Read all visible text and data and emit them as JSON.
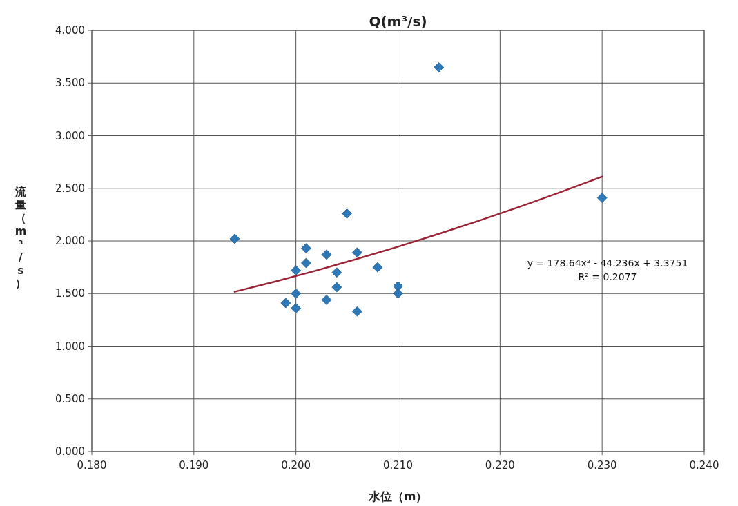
{
  "chart_data": {
    "type": "scatter",
    "title": "Q(m³/s)",
    "xlabel": "水位（m）",
    "ylabel": "流量（m³/s）",
    "annotations": [
      "y = 178.64x² - 44.236x + 3.3751",
      "R² = 0.2077"
    ],
    "xlim": [
      0.18,
      0.24
    ],
    "ylim": [
      0,
      4
    ],
    "xticks": [
      {
        "value": 0.18,
        "label": "0.180"
      },
      {
        "value": 0.19,
        "label": "0.190"
      },
      {
        "value": 0.2,
        "label": "0.200"
      },
      {
        "value": 0.21,
        "label": "0.210"
      },
      {
        "value": 0.22,
        "label": "0.220"
      },
      {
        "value": 0.23,
        "label": "0.230"
      },
      {
        "value": 0.24,
        "label": "0.240"
      }
    ],
    "yticks": [
      {
        "value": 0,
        "label": "0.000"
      },
      {
        "value": 0.5,
        "label": "0.500"
      },
      {
        "value": 1,
        "label": "1.000"
      },
      {
        "value": 1.5,
        "label": "1.500"
      },
      {
        "value": 2,
        "label": "2.000"
      },
      {
        "value": 2.5,
        "label": "2.500"
      },
      {
        "value": 3,
        "label": "3.000"
      },
      {
        "value": 3.5,
        "label": "3.500"
      },
      {
        "value": 4,
        "label": "4.000"
      }
    ],
    "grid": true,
    "series": [
      {
        "marker": "diamond",
        "color": "#2e78b7",
        "x": [
          0.194,
          0.214,
          0.205,
          0.23,
          0.201,
          0.201,
          0.2,
          0.203,
          0.206,
          0.204,
          0.208,
          0.204,
          0.21,
          0.21,
          0.2,
          0.199,
          0.2,
          0.203,
          0.206
        ],
        "values": [
          2.02,
          3.65,
          2.26,
          2.41,
          1.93,
          1.79,
          1.72,
          1.87,
          1.89,
          1.7,
          1.75,
          1.56,
          1.57,
          1.5,
          1.5,
          1.41,
          1.36,
          1.44,
          1.33
        ]
      },
      {
        "type": "line",
        "marker": "none",
        "color": "#9b2335",
        "x": [
          0.194,
          0.198,
          0.202,
          0.206,
          0.21,
          0.214,
          0.218,
          0.222,
          0.226,
          0.23
        ],
        "values": [
          1.517,
          1.615,
          1.719,
          1.829,
          1.945,
          2.067,
          2.194,
          2.327,
          2.466,
          2.611
        ]
      }
    ]
  }
}
